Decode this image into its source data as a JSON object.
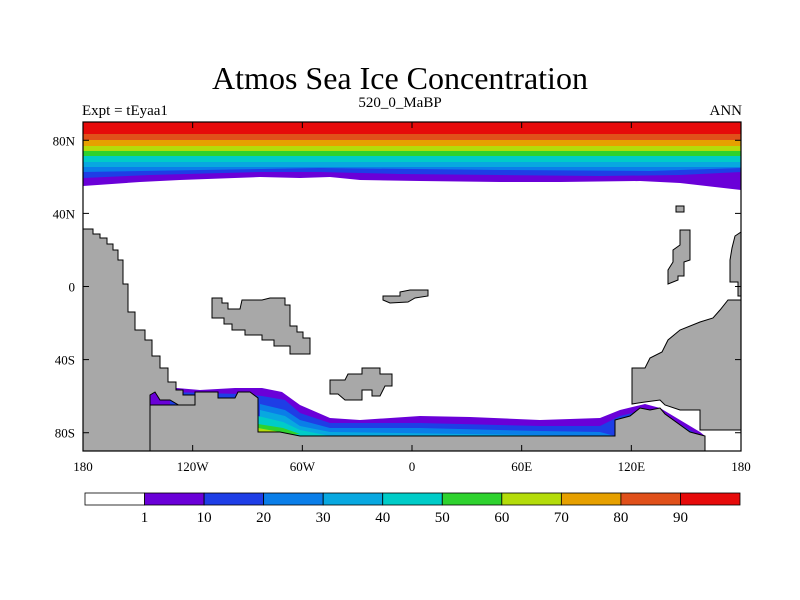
{
  "title": "Atmos Sea Ice Concentration",
  "subtitle_left": "Expt = tEyaa1",
  "subtitle_center": "520_0_MaBP",
  "subtitle_right": "ANN",
  "y_axis": {
    "labels": [
      "80N",
      "40N",
      "0",
      "40S",
      "80S"
    ],
    "values": [
      80,
      40,
      0,
      -40,
      -80
    ],
    "range": [
      -90,
      90
    ]
  },
  "x_axis": {
    "labels": [
      "180",
      "120W",
      "60W",
      "0",
      "60E",
      "120E",
      "180"
    ],
    "values": [
      -180,
      -120,
      -60,
      0,
      60,
      120,
      180
    ],
    "range": [
      -180,
      180
    ]
  },
  "colorbar": {
    "levels": [
      "1",
      "10",
      "20",
      "30",
      "40",
      "50",
      "60",
      "70",
      "80",
      "90"
    ],
    "colors": [
      "#ffffff",
      "#6a00d8",
      "#1e3ee6",
      "#0a7ee8",
      "#08a8e0",
      "#00ccc8",
      "#2ed22e",
      "#b4dc0a",
      "#e6a000",
      "#e0501a",
      "#e60a0a"
    ]
  },
  "colors": {
    "land": "#a8a8a8",
    "ocean": "#ffffff"
  }
}
